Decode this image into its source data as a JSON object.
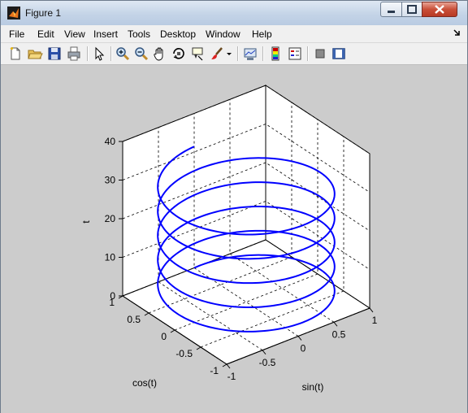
{
  "window": {
    "title": "Figure 1"
  },
  "menu": [
    "File",
    "Edit",
    "View",
    "Insert",
    "Tools",
    "Desktop",
    "Window",
    "Help"
  ],
  "toolbar": {
    "buttons": [
      "new-figure",
      "open-file",
      "save",
      "print",
      "select-arrow",
      "zoom-in",
      "zoom-out",
      "pan",
      "rotate-3d",
      "data-cursor",
      "brush",
      "link-plot",
      "colorbar",
      "legend",
      "hide-plot-tools",
      "show-plot-tools"
    ]
  },
  "chart_data": {
    "type": "line3d",
    "equation": "x = sin(t), y = cos(t), z = t",
    "t_range": [
      0,
      31.416
    ],
    "xlabel": "sin(t)",
    "ylabel": "cos(t)",
    "zlabel": "t",
    "xlim": [
      -1,
      1
    ],
    "ylim": [
      -1,
      1
    ],
    "zlim": [
      0,
      40
    ],
    "xticks": [
      "-1",
      "-0.5",
      "0",
      "0.5",
      "1"
    ],
    "yticks": [
      "-1",
      "-0.5",
      "0",
      "0.5",
      "1"
    ],
    "zticks": [
      "0",
      "10",
      "20",
      "30",
      "40"
    ],
    "grid": true,
    "line_color": "#0000ff"
  }
}
